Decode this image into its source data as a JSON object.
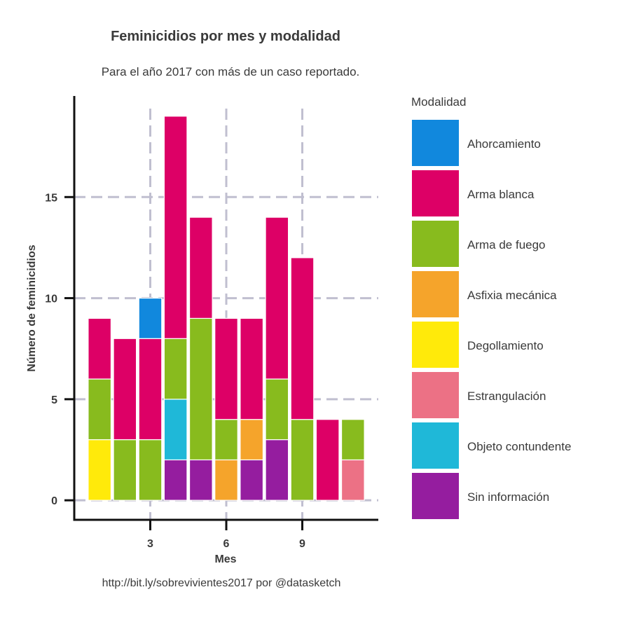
{
  "chart_data": {
    "type": "bar",
    "stacked": true,
    "title": "Feminicidios por mes y modalidad",
    "subtitle": "Para el año 2017 con más de un caso reportado.",
    "caption": "http://bit.ly/sobrevivientes2017 por @datasketch",
    "xlabel": "Mes",
    "ylabel": "Número de feminicidios",
    "x": [
      1,
      2,
      3,
      4,
      5,
      6,
      7,
      8,
      9,
      10,
      11
    ],
    "xlim": [
      0,
      12
    ],
    "ylim": [
      -1,
      20
    ],
    "xticks": [
      3,
      6,
      9
    ],
    "yticks": [
      0,
      5,
      10,
      15
    ],
    "grid": true,
    "legend_title": "Modalidad",
    "legend_position": "right",
    "series": [
      {
        "name": "Ahorcamiento",
        "color": "#1188dd",
        "values": [
          0,
          0,
          2,
          0,
          0,
          0,
          0,
          0,
          0,
          0,
          0
        ]
      },
      {
        "name": "Arma blanca",
        "color": "#dd0066",
        "values": [
          3,
          5,
          5,
          11,
          5,
          5,
          5,
          8,
          8,
          4,
          0
        ]
      },
      {
        "name": "Arma de fuego",
        "color": "#88bb1e",
        "values": [
          3,
          3,
          3,
          3,
          7,
          2,
          0,
          3,
          4,
          0,
          2
        ]
      },
      {
        "name": "Asfixia mecánica",
        "color": "#f5a42b",
        "values": [
          0,
          0,
          0,
          0,
          0,
          2,
          2,
          0,
          0,
          0,
          0
        ]
      },
      {
        "name": "Degollamiento",
        "color": "#ffea0a",
        "values": [
          3,
          0,
          0,
          0,
          0,
          0,
          0,
          0,
          0,
          0,
          0
        ]
      },
      {
        "name": "Estrangulación",
        "color": "#ec7185",
        "values": [
          0,
          0,
          0,
          0,
          0,
          0,
          0,
          0,
          0,
          0,
          2
        ]
      },
      {
        "name": "Objeto contundente",
        "color": "#1fb8d8",
        "values": [
          0,
          0,
          0,
          3,
          0,
          0,
          0,
          0,
          0,
          0,
          0
        ]
      },
      {
        "name": "Sin información",
        "color": "#951d9f",
        "values": [
          0,
          0,
          0,
          2,
          2,
          0,
          2,
          3,
          0,
          0,
          0
        ]
      }
    ]
  }
}
